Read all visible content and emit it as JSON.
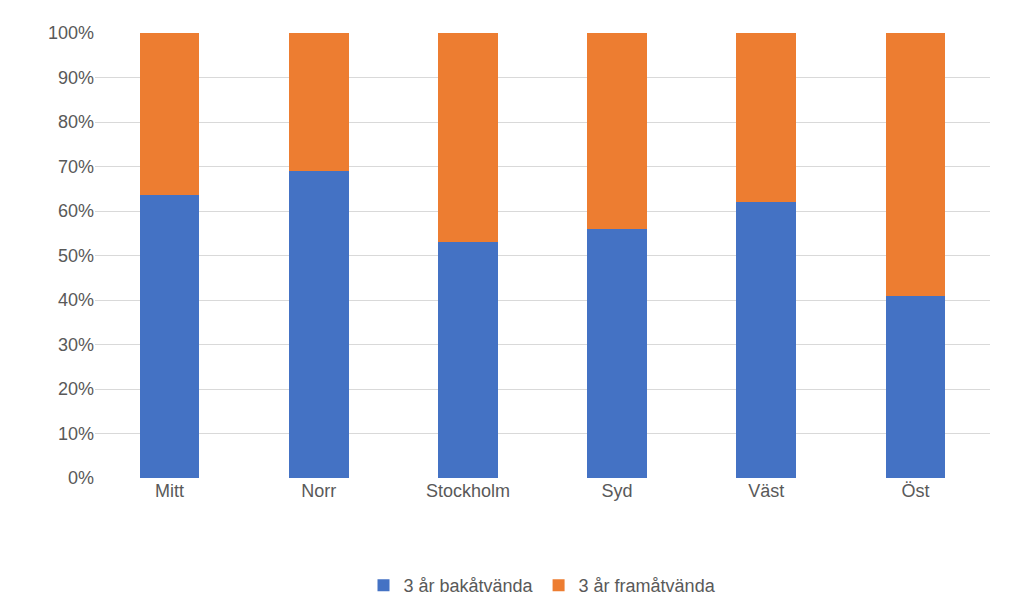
{
  "chart_data": {
    "type": "bar",
    "stacked": true,
    "categories": [
      "Mitt",
      "Norr",
      "Stockholm",
      "Syd",
      "Väst",
      "Öst"
    ],
    "series": [
      {
        "name": "3 år bakåtvända",
        "color": "#4472c4",
        "values": [
          63.5,
          69,
          53,
          56,
          62,
          41
        ]
      },
      {
        "name": "3 år framåtvända",
        "color": "#ed7d31",
        "values": [
          36.5,
          31,
          47,
          44,
          38,
          59
        ]
      }
    ],
    "ylim": [
      0,
      100
    ],
    "yticks": [
      {
        "value": 0,
        "label": "0%"
      },
      {
        "value": 10,
        "label": "10%"
      },
      {
        "value": 20,
        "label": "20%"
      },
      {
        "value": 30,
        "label": "30%"
      },
      {
        "value": 40,
        "label": "40%"
      },
      {
        "value": 50,
        "label": "50%"
      },
      {
        "value": 60,
        "label": "60%"
      },
      {
        "value": 70,
        "label": "70%"
      },
      {
        "value": 80,
        "label": "80%"
      },
      {
        "value": 90,
        "label": "90%"
      },
      {
        "value": 100,
        "label": "100%"
      }
    ],
    "grid": true,
    "legend": "bottom"
  }
}
